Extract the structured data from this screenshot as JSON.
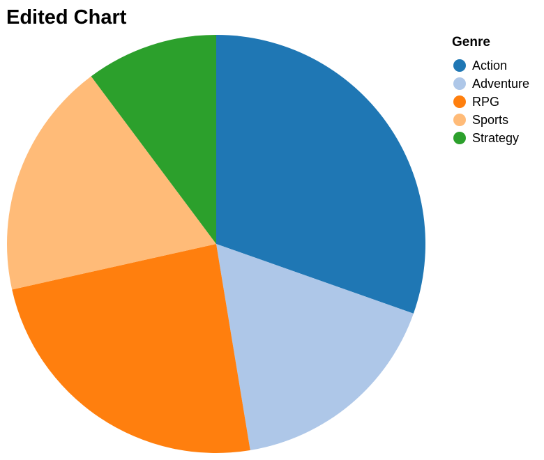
{
  "chart_data": {
    "type": "pie",
    "title": "Edited Chart",
    "legend_title": "Genre",
    "legend_position": "top-right",
    "categories": [
      "Action",
      "Adventure",
      "RPG",
      "Sports",
      "Strategy"
    ],
    "values": [
      30.4,
      17.0,
      24.1,
      18.3,
      10.2
    ],
    "colors": [
      "#1f77b4",
      "#aec7e8",
      "#ff7f0e",
      "#ffbb78",
      "#2ca02c"
    ]
  }
}
